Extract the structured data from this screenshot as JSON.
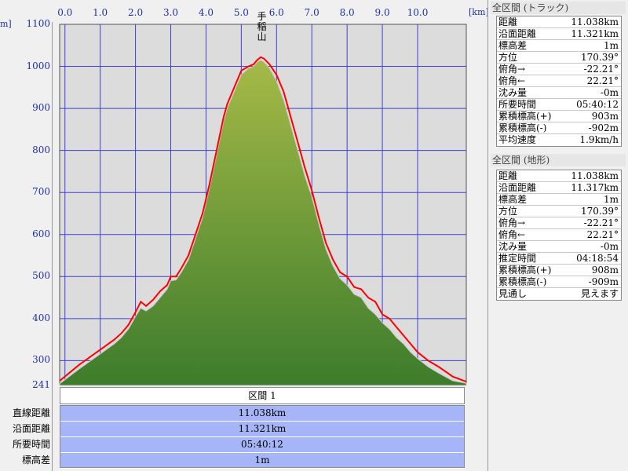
{
  "chart_data": {
    "type": "area",
    "title": "",
    "xlabel": "",
    "ylabel": "",
    "x_unit": "[km]",
    "y_unit": "m]",
    "xlim": [
      -0.15,
      11.38
    ],
    "ylim": [
      241,
      1100
    ],
    "x_ticks": [
      "0.0",
      "1.0",
      "2.0",
      "3.0",
      "4.0",
      "5.0",
      "6.0",
      "7.0",
      "8.0",
      "9.0",
      "10.0"
    ],
    "y_ticks": [
      "1100",
      "1000",
      "900",
      "800",
      "700",
      "600",
      "500",
      "400",
      "300",
      "241"
    ],
    "y_tick_values": [
      1100,
      1000,
      900,
      800,
      700,
      600,
      500,
      400,
      300,
      241
    ],
    "grid": true,
    "peak_label": "手稲山",
    "peak_x": 5.57,
    "colors": {
      "track": "#ff0000",
      "terrain_top": "#a5ba47",
      "terrain_bottom": "#3d7c2c",
      "background": "#dcdcdc",
      "grid": "#3f3fd6"
    },
    "series": [
      {
        "name": "",
        "role": "track",
        "x": [
          -0.15,
          0.4,
          0.9,
          1.4,
          1.6,
          1.8,
          2.0,
          2.15,
          2.3,
          2.5,
          2.7,
          2.9,
          3.0,
          3.15,
          3.3,
          3.5,
          3.7,
          3.9,
          4.1,
          4.3,
          4.5,
          4.6,
          4.8,
          5.0,
          5.2,
          5.35,
          5.45,
          5.55,
          5.65,
          5.8,
          6.0,
          6.2,
          6.4,
          6.6,
          6.8,
          7.0,
          7.2,
          7.4,
          7.6,
          7.8,
          8.0,
          8.2,
          8.4,
          8.6,
          8.8,
          9.0,
          9.2,
          9.4,
          9.6,
          9.8,
          10.0,
          10.3,
          10.6,
          11.0,
          11.38
        ],
        "y": [
          252,
          290,
          320,
          350,
          365,
          385,
          415,
          440,
          430,
          445,
          465,
          480,
          500,
          500,
          520,
          550,
          600,
          650,
          720,
          800,
          880,
          910,
          950,
          990,
          1000,
          1005,
          1015,
          1022,
          1018,
          1005,
          980,
          940,
          880,
          820,
          760,
          705,
          640,
          580,
          540,
          510,
          500,
          475,
          470,
          450,
          440,
          410,
          400,
          380,
          360,
          340,
          320,
          300,
          285,
          262,
          250
        ]
      },
      {
        "name": "",
        "role": "terrain",
        "x": [
          -0.15,
          0.4,
          0.9,
          1.4,
          1.6,
          1.8,
          2.0,
          2.15,
          2.3,
          2.5,
          2.7,
          2.9,
          3.0,
          3.15,
          3.3,
          3.5,
          3.7,
          3.9,
          4.1,
          4.3,
          4.5,
          4.6,
          4.8,
          5.0,
          5.2,
          5.35,
          5.45,
          5.55,
          5.65,
          5.8,
          6.0,
          6.2,
          6.4,
          6.6,
          6.8,
          7.0,
          7.2,
          7.4,
          7.6,
          7.8,
          8.0,
          8.2,
          8.4,
          8.6,
          8.8,
          9.0,
          9.2,
          9.4,
          9.6,
          9.8,
          10.0,
          10.3,
          10.6,
          11.0,
          11.38
        ],
        "y": [
          245,
          280,
          310,
          340,
          355,
          375,
          405,
          425,
          418,
          430,
          450,
          470,
          490,
          492,
          510,
          540,
          590,
          640,
          710,
          790,
          870,
          900,
          940,
          980,
          995,
          1000,
          1010,
          1015,
          1010,
          995,
          965,
          920,
          860,
          800,
          740,
          690,
          625,
          565,
          525,
          495,
          480,
          458,
          450,
          425,
          410,
          390,
          375,
          355,
          340,
          320,
          305,
          285,
          270,
          252,
          246
        ]
      }
    ]
  },
  "segment": {
    "header": "区間 1",
    "labels": [
      "直線距離",
      "沿面距離",
      "所要時間",
      "標高差"
    ],
    "values": [
      "11.038km",
      "11.321km",
      "05:40:12",
      "1m"
    ]
  },
  "track_panel": {
    "title": "全区間 (トラック)",
    "rows": [
      {
        "k": "距離",
        "v": "11.038km"
      },
      {
        "k": "沿面距離",
        "v": "11.321km"
      },
      {
        "k": "標高差",
        "v": "1m"
      },
      {
        "k": "方位",
        "v": "170.39°"
      },
      {
        "k": "俯角→",
        "v": "-22.21°"
      },
      {
        "k": "俯角←",
        "v": "22.21°"
      },
      {
        "k": "沈み量",
        "v": "-0m"
      },
      {
        "k": "所要時間",
        "v": "05:40:12"
      },
      {
        "k": "累積標高(+)",
        "v": "903m"
      },
      {
        "k": "累積標高(-)",
        "v": "-902m"
      },
      {
        "k": "平均速度",
        "v": "1.9km/h"
      }
    ]
  },
  "terrain_panel": {
    "title": "全区間 (地形)",
    "rows": [
      {
        "k": "距離",
        "v": "11.038km"
      },
      {
        "k": "沿面距離",
        "v": "11.317km"
      },
      {
        "k": "標高差",
        "v": "1m"
      },
      {
        "k": "方位",
        "v": "170.39°"
      },
      {
        "k": "俯角→",
        "v": "-22.21°"
      },
      {
        "k": "俯角←",
        "v": "22.21°"
      },
      {
        "k": "沈み量",
        "v": "-0m"
      },
      {
        "k": "推定時間",
        "v": "04:18:54"
      },
      {
        "k": "累積標高(+)",
        "v": "908m"
      },
      {
        "k": "累積標高(-)",
        "v": "-909m"
      },
      {
        "k": "見通し",
        "v": "見えます"
      }
    ]
  }
}
